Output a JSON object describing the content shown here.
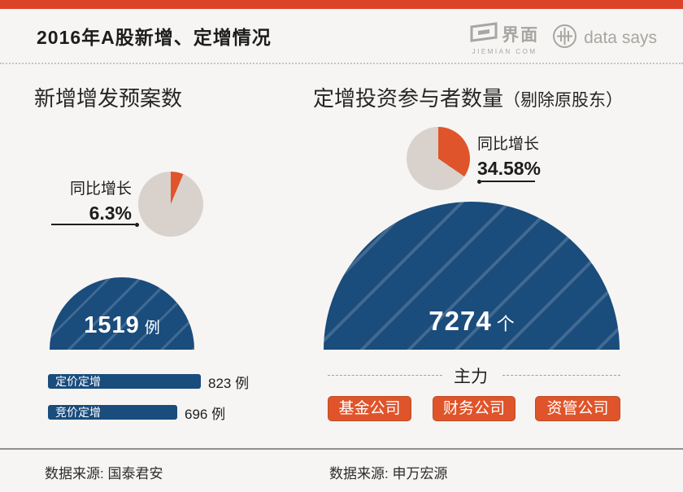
{
  "colors": {
    "accent_red": "#dc4228",
    "orange": "#e0542b",
    "blue": "#1a4c7c",
    "pie_gray": "#d9d2cc"
  },
  "header": {
    "title": "2016年A股新增、定增情况",
    "jiemian_logo_text": "界面",
    "jiemian_logo_sub": "JIEMIAN COM",
    "datasays_logo_text": "data says"
  },
  "left_section": {
    "title": "新增增发预案数",
    "growth": {
      "label": "同比增长",
      "value_text": "6.3%",
      "percent": 6.3
    },
    "total": {
      "value": 1519,
      "value_text": "1519",
      "unit": "例"
    },
    "bars": [
      {
        "label": "定价定增",
        "value": 823,
        "value_text": "823 例"
      },
      {
        "label": "竞价定增",
        "value": 696,
        "value_text": "696 例"
      }
    ]
  },
  "right_section": {
    "title": "定增投资参与者数量",
    "title_note": "（剔除原股东）",
    "growth": {
      "label": "同比增长",
      "value_text": "34.58%",
      "percent": 34.58
    },
    "total": {
      "value": 7274,
      "value_text": "7274",
      "unit": "个"
    },
    "main_force": {
      "label": "主力",
      "items": [
        "基金公司",
        "财务公司",
        "资管公司"
      ]
    }
  },
  "footer": {
    "left_source": "数据来源: 国泰君安",
    "right_source": "数据来源: 申万宏源"
  },
  "chart_data": [
    {
      "type": "pie",
      "title": "新增增发预案数 同比增长",
      "slices": [
        {
          "label": "同比增长",
          "value": 6.3,
          "color": "#e0542b"
        },
        {
          "label": "其余",
          "value": 93.7,
          "color": "#d9d2cc"
        }
      ],
      "unit": "%",
      "legend_position": "left"
    },
    {
      "type": "area",
      "title": "新增增发预案数",
      "value": 1519,
      "unit": "例",
      "shape": "semicircle",
      "color": "#1a4c7c"
    },
    {
      "type": "bar",
      "orientation": "horizontal",
      "categories": [
        "定价定增",
        "竞价定增"
      ],
      "values": [
        823,
        696
      ],
      "unit": "例",
      "color": "#1a4c7c"
    },
    {
      "type": "pie",
      "title": "定增投资参与者数量 同比增长",
      "slices": [
        {
          "label": "同比增长",
          "value": 34.58,
          "color": "#e0542b"
        },
        {
          "label": "其余",
          "value": 65.42,
          "color": "#d9d2cc"
        }
      ],
      "unit": "%",
      "legend_position": "right"
    },
    {
      "type": "area",
      "title": "定增投资参与者数量（剔除原股东）",
      "value": 7274,
      "unit": "个",
      "shape": "semicircle",
      "color": "#1a4c7c",
      "annotations": [
        "主力: 基金公司 / 财务公司 / 资管公司"
      ]
    }
  ]
}
